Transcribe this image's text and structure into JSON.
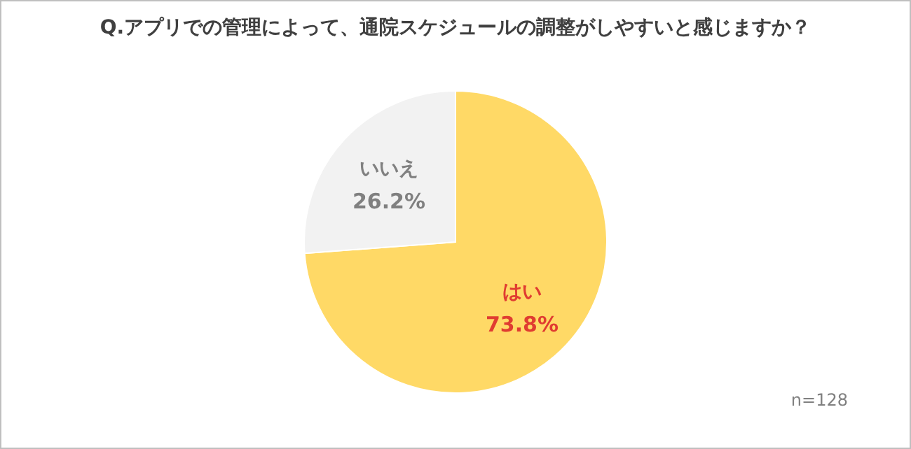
{
  "chart_data": {
    "type": "pie",
    "title": "Q.アプリでの管理によって、通院スケジュールの調整がしやすいと感じますか？",
    "categories": [
      "はい",
      "いいえ"
    ],
    "values": [
      73.8,
      26.2
    ],
    "colors": [
      "#ffd966",
      "#f2f2f2"
    ],
    "value_labels": [
      "73.8%",
      "26.2%"
    ],
    "annotations": [
      "n=128"
    ]
  }
}
